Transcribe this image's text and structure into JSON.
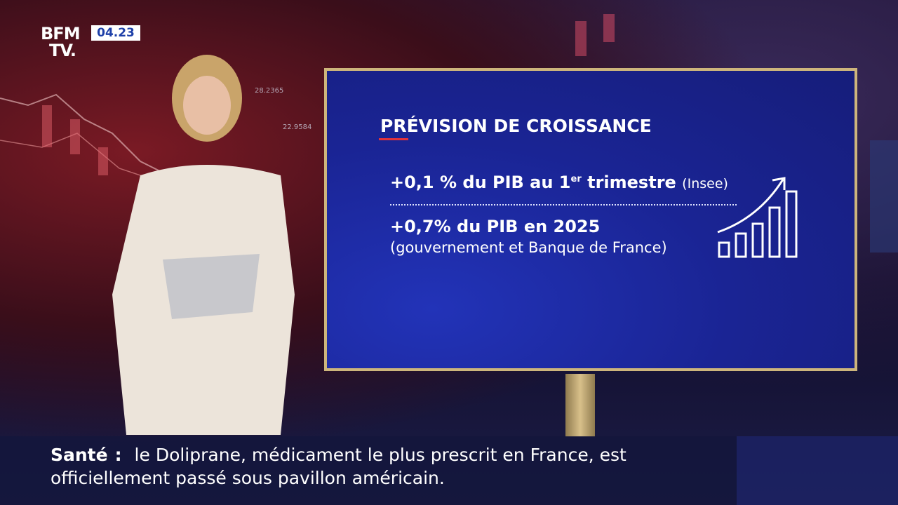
{
  "logo": {
    "line1": "BFM",
    "line2": "TV."
  },
  "clock": "04.23",
  "background_numbers": [
    "28.2365",
    "22.9584"
  ],
  "panel": {
    "title": "PRÉVISION DE CROISSANCE",
    "items": [
      {
        "text": "+0,1 % du PIB au 1",
        "superscript": "er",
        "text_after": "trimestre",
        "source": "(Insee)"
      },
      {
        "text": "+0,7% du PIB en 2025",
        "source": "(gouvernement et Banque de France)"
      }
    ]
  },
  "ticker": {
    "topic": "Santé",
    "separator": ":",
    "text": "le Doliprane, médicament le plus prescrit en France, est officiellement passé sous pavillon américain."
  }
}
